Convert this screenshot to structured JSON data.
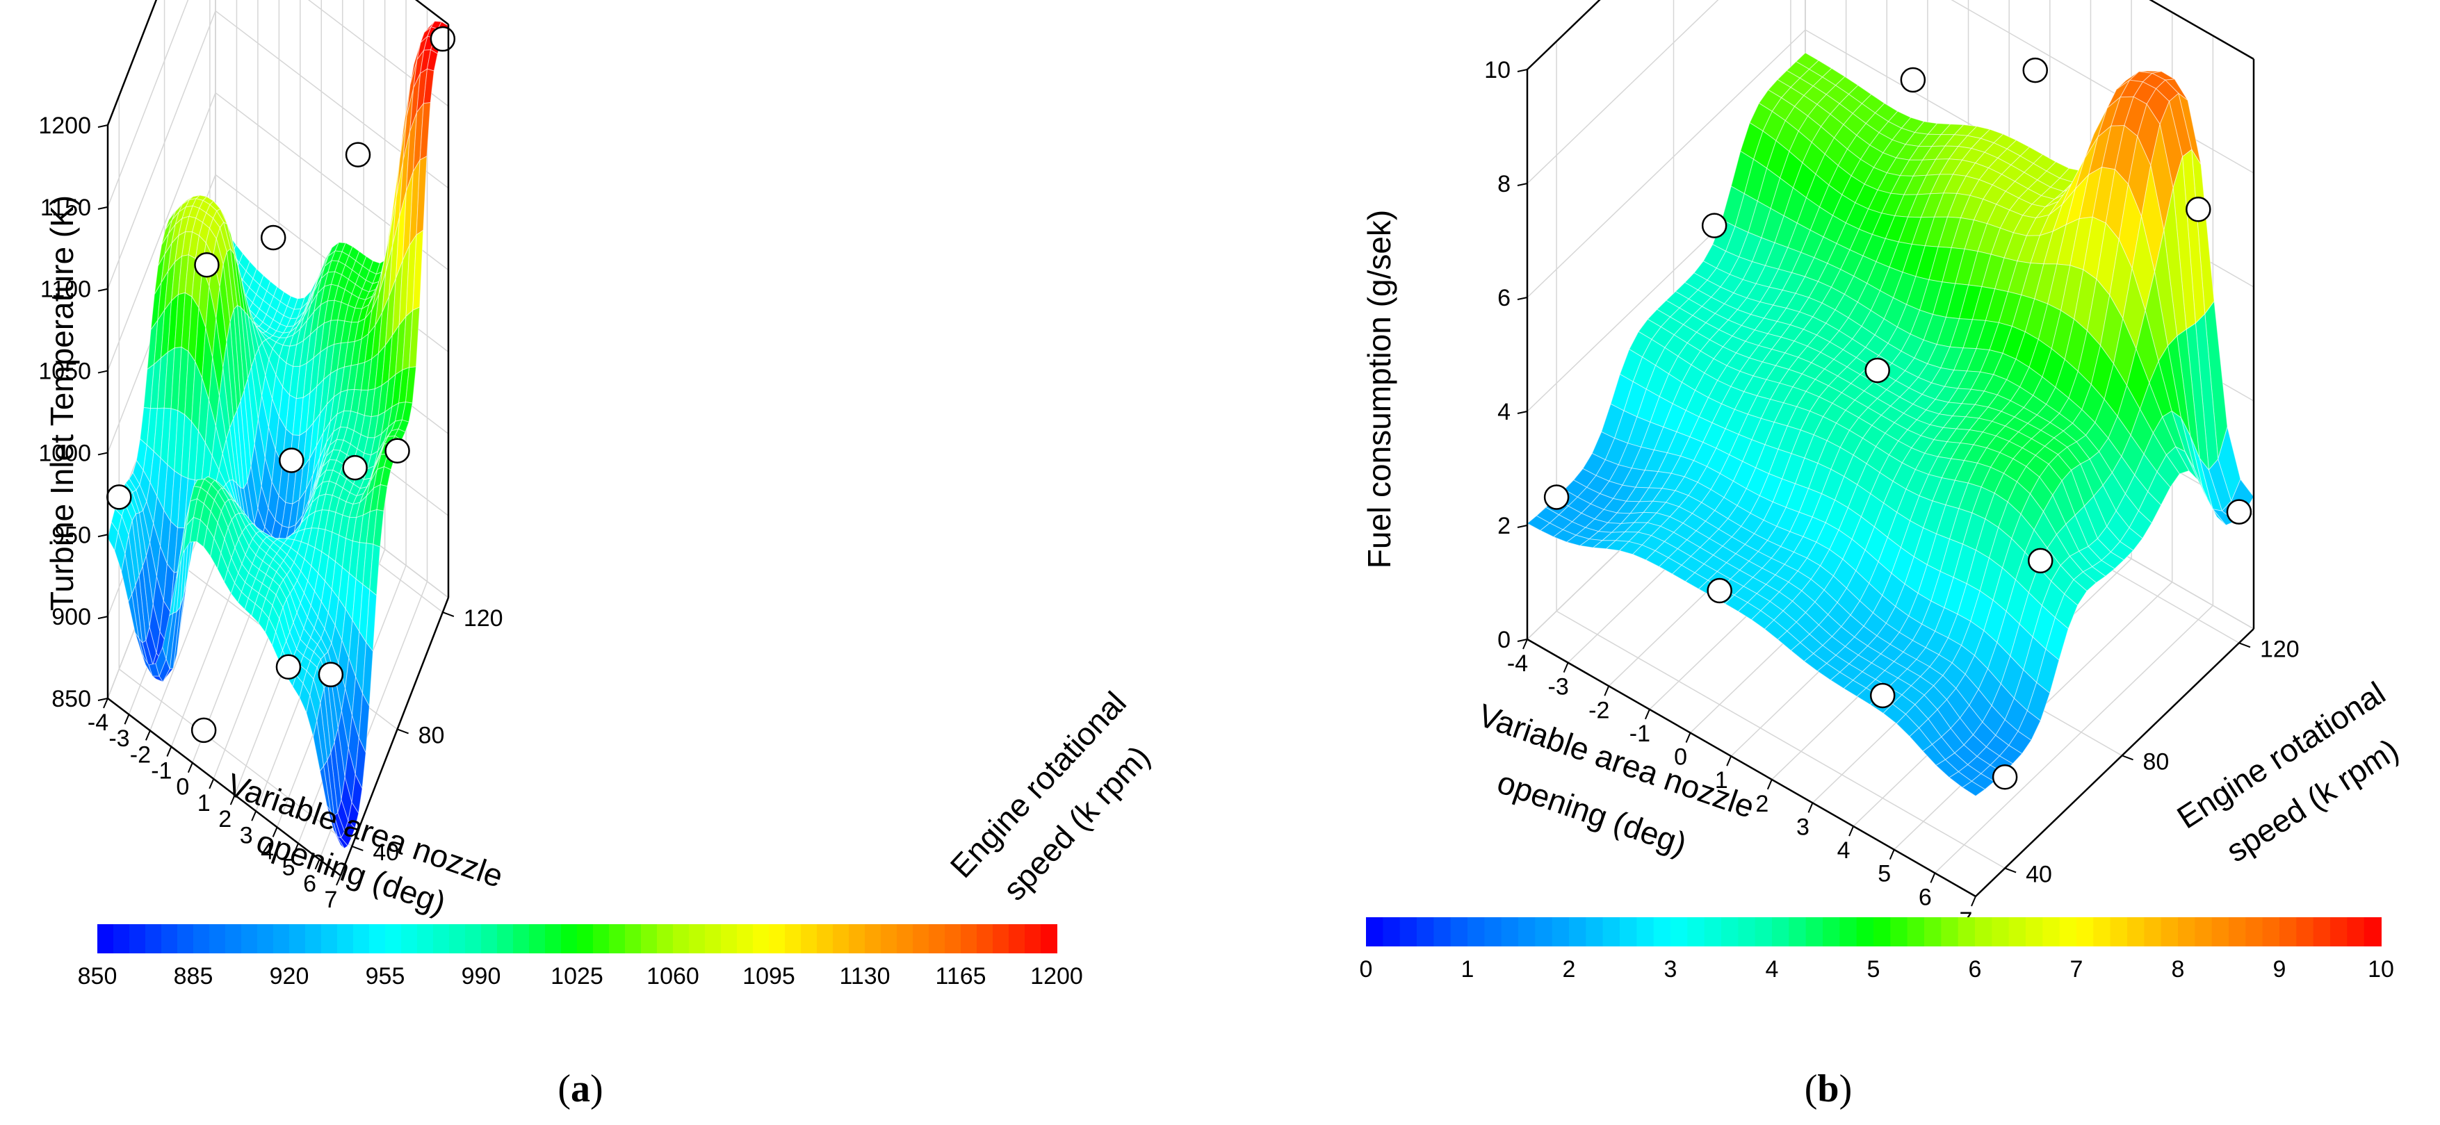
{
  "chart_data": [
    {
      "type": "surface3d",
      "panel_label": "a",
      "title": "",
      "zlabel": "Turbine Inlet Temperature (K)",
      "xlabel": [
        "Variable area nozzle",
        "opening (deg)"
      ],
      "ylabel": [
        "Engine rotational",
        "speed (k rpm)"
      ],
      "x_ticks": [
        "-4",
        "-3",
        "-2",
        "-1",
        "0",
        "1",
        "2",
        "3",
        "4",
        "5",
        "6",
        "7"
      ],
      "y_ticks": [
        "40",
        "80",
        "120"
      ],
      "z_ticks": [
        "850",
        "900",
        "950",
        "1000",
        "1050",
        "1100",
        "1150",
        "1200"
      ],
      "xlim": [
        -4,
        7
      ],
      "ylim": [
        30,
        125
      ],
      "zlim": [
        850,
        1200
      ],
      "colorbar_ticks": [
        "850",
        "885",
        "920",
        "955",
        "990",
        "1025",
        "1060",
        "1095",
        "1130",
        "1165",
        "1200"
      ],
      "surface_samples": [
        {
          "x": -4,
          "y": 40,
          "z": 955
        },
        {
          "x": -2,
          "y": 40,
          "z": 868
        },
        {
          "x": 0,
          "y": 40,
          "z": 1000
        },
        {
          "x": 3,
          "y": 40,
          "z": 970
        },
        {
          "x": 5,
          "y": 40,
          "z": 945
        },
        {
          "x": 7,
          "y": 40,
          "z": 856
        },
        {
          "x": -2,
          "y": 80,
          "z": 1075
        },
        {
          "x": 1,
          "y": 80,
          "z": 900
        },
        {
          "x": 5,
          "y": 80,
          "z": 985
        },
        {
          "x": 7,
          "y": 80,
          "z": 1020
        },
        {
          "x": -1,
          "y": 120,
          "z": 960
        },
        {
          "x": 3,
          "y": 120,
          "z": 1020
        },
        {
          "x": 7,
          "y": 120,
          "z": 1200
        }
      ],
      "markers": [
        {
          "x": -4,
          "y": 40,
          "z": 955
        },
        {
          "x": 0,
          "y": 40,
          "z": 852
        },
        {
          "x": 4,
          "y": 40,
          "z": 930
        },
        {
          "x": 6,
          "y": 40,
          "z": 945
        },
        {
          "x": -2,
          "y": 80,
          "z": 1045
        },
        {
          "x": 2,
          "y": 80,
          "z": 965
        },
        {
          "x": 5,
          "y": 80,
          "z": 990
        },
        {
          "x": 7,
          "y": 80,
          "z": 1020
        },
        {
          "x": -1,
          "y": 120,
          "z": 1000
        },
        {
          "x": 3,
          "y": 120,
          "z": 1090
        },
        {
          "x": 7,
          "y": 120,
          "z": 1200
        }
      ],
      "color_stops": [
        "#0000ff",
        "#0066ff",
        "#00aaff",
        "#00ffff",
        "#00ffaa",
        "#00ff00",
        "#aaff00",
        "#ffff00",
        "#ffaa00",
        "#ff6600",
        "#ff0000"
      ]
    },
    {
      "type": "surface3d",
      "panel_label": "b",
      "title": "",
      "zlabel": "Fuel consumption (g/sek)",
      "xlabel": [
        "Variable area nozzle",
        "opening (deg)"
      ],
      "ylabel": [
        "Engine rotational",
        "speed (k rpm)"
      ],
      "x_ticks": [
        "-4",
        "-3",
        "-2",
        "-1",
        "0",
        "1",
        "2",
        "3",
        "4",
        "5",
        "6",
        "7"
      ],
      "y_ticks": [
        "40",
        "80",
        "120"
      ],
      "z_ticks": [
        "0",
        "2",
        "4",
        "6",
        "8",
        "10"
      ],
      "xlim": [
        -4,
        7
      ],
      "ylim": [
        30,
        125
      ],
      "zlim": [
        0,
        10
      ],
      "colorbar_ticks": [
        "0",
        "1",
        "2",
        "3",
        "4",
        "5",
        "6",
        "7",
        "8",
        "9",
        "10"
      ],
      "surface_samples": [
        {
          "x": -4,
          "y": 40,
          "z": 2.0
        },
        {
          "x": 0,
          "y": 40,
          "z": 2.6
        },
        {
          "x": 4,
          "y": 40,
          "z": 2.3
        },
        {
          "x": 7,
          "y": 40,
          "z": 1.7
        },
        {
          "x": -4,
          "y": 80,
          "z": 3.6
        },
        {
          "x": 1,
          "y": 80,
          "z": 4.0
        },
        {
          "x": 5,
          "y": 80,
          "z": 4.6
        },
        {
          "x": 7,
          "y": 80,
          "z": 3.4
        },
        {
          "x": -4,
          "y": 120,
          "z": 5.6
        },
        {
          "x": 2,
          "y": 120,
          "z": 6.2
        },
        {
          "x": 5,
          "y": 120,
          "z": 9.0
        },
        {
          "x": 7,
          "y": 120,
          "z": 2.2
        }
      ],
      "markers": [
        {
          "x": -4,
          "y": 40,
          "z": 2.0
        },
        {
          "x": 0,
          "y": 40,
          "z": 2.0
        },
        {
          "x": 4,
          "y": 40,
          "z": 1.8
        },
        {
          "x": 7,
          "y": 40,
          "z": 1.6
        },
        {
          "x": -3,
          "y": 80,
          "z": 5.2
        },
        {
          "x": 1,
          "y": 80,
          "z": 4.3
        },
        {
          "x": 5,
          "y": 80,
          "z": 2.6
        },
        {
          "x": -1,
          "y": 120,
          "z": 6.6
        },
        {
          "x": 2,
          "y": 120,
          "z": 8.0
        },
        {
          "x": 6,
          "y": 120,
          "z": 7.2
        },
        {
          "x": 7,
          "y": 120,
          "z": 2.3
        }
      ],
      "color_stops": [
        "#0000ff",
        "#0066ff",
        "#00aaff",
        "#00ffff",
        "#00ffaa",
        "#00ff00",
        "#aaff00",
        "#ffff00",
        "#ffaa00",
        "#ff6600",
        "#ff0000"
      ]
    }
  ]
}
